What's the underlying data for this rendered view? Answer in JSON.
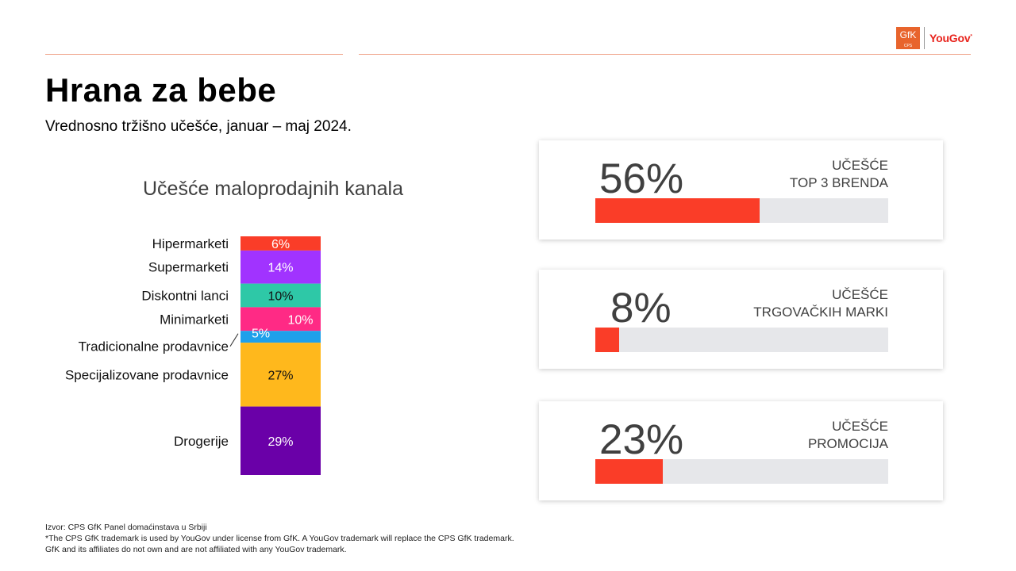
{
  "header": {
    "logo_gfk": "GfK",
    "logo_gfk_sub": "CPS",
    "logo_yougov": "YouGov"
  },
  "title": "Hrana za bebe",
  "subtitle": "Vrednosno tržišno učešće, januar – maj 2024.",
  "chart_data": {
    "type": "bar",
    "stacked": true,
    "title": "Učešće maloprodajnih kanala",
    "categories": [
      "Hipermarketi",
      "Supermarketi",
      "Diskontni lanci",
      "Minimarketi",
      "Tradicionalne prodavnice",
      "Specijalizovane prodavnice",
      "Drogerije"
    ],
    "values": [
      6,
      14,
      10,
      10,
      5,
      27,
      29
    ],
    "value_labels": [
      "6%",
      "14%",
      "10%",
      "10%",
      "5%",
      "27%",
      "29%"
    ],
    "colors": [
      "#fa3d28",
      "#a133ff",
      "#2ec8a7",
      "#ff2a85",
      "#1ea0ea",
      "#ffb81c",
      "#6a00a8"
    ],
    "label_colors": [
      "#ffffff",
      "#ffffff",
      "#111111",
      "#ffffff",
      "#ffffff",
      "#111111",
      "#ffffff"
    ]
  },
  "kpi_cards": [
    {
      "value": "56%",
      "fraction": 0.56,
      "label_line1": "UČEŠĆE",
      "label_line2": "TOP 3 BRENDA",
      "bar_color": "#fa3d28"
    },
    {
      "value": "8%",
      "fraction": 0.08,
      "label_line1": "UČEŠĆE",
      "label_line2": "TRGOVAČKIH MARKI",
      "bar_color": "#fa3d28"
    },
    {
      "value": "23%",
      "fraction": 0.23,
      "label_line1": "UČEŠĆE",
      "label_line2": "PROMOCIJA",
      "bar_color": "#fa3d28"
    }
  ],
  "footer": {
    "line1": "Izvor: CPS GfK Panel domaćinstava u Srbiji",
    "line2": "*The CPS GfK trademark is used by YouGov under license from GfK. A YouGov trademark will replace the CPS GfK trademark.",
    "line3": "GfK and its affiliates do not own and are not affiliated with any YouGov trademark."
  }
}
